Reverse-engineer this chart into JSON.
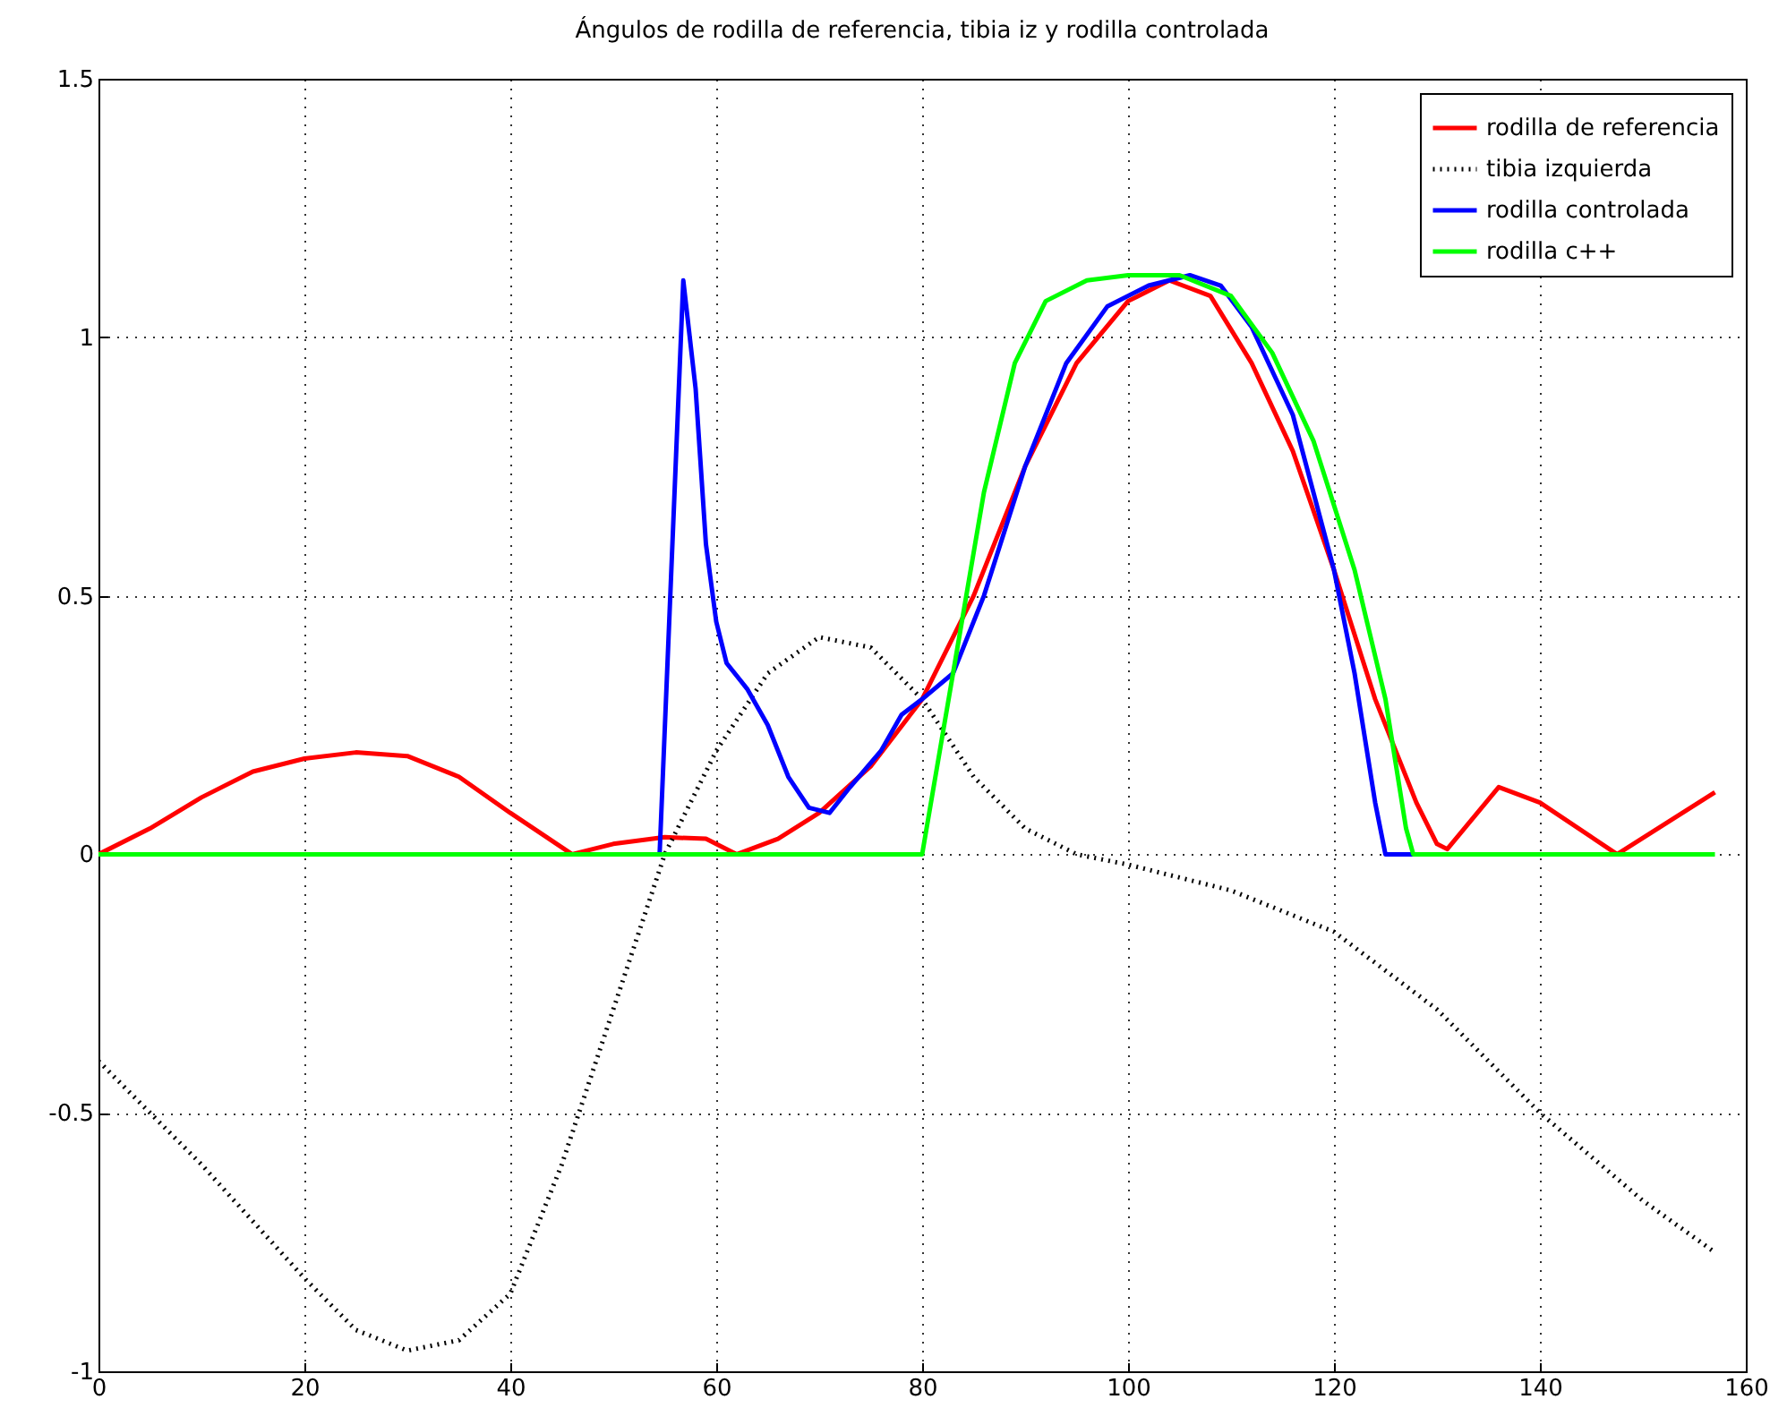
{
  "chart_data": {
    "type": "line",
    "title": "Ángulos de rodilla de referencia, tibia iz y rodilla controlada",
    "xlim": [
      0,
      160
    ],
    "xticks": [
      0,
      20,
      40,
      60,
      80,
      100,
      120,
      140,
      160
    ],
    "ylim": [
      -1,
      1.5
    ],
    "yticks": [
      -1,
      -0.5,
      0,
      0.5,
      1,
      1.5
    ],
    "grid": true,
    "legend": "top right",
    "series": [
      {
        "name": "rodilla de referencia",
        "color": "#ff0000",
        "line_style": "solid",
        "x": [
          0,
          5,
          10,
          15,
          20,
          25,
          30,
          35,
          40,
          46,
          50,
          55,
          59,
          62,
          66,
          70,
          75,
          80,
          85,
          90,
          95,
          100,
          104,
          108,
          112,
          116,
          120,
          124,
          128,
          130,
          131,
          136,
          140,
          147.5,
          157
        ],
        "values": [
          0,
          0.05,
          0.11,
          0.16,
          0.185,
          0.197,
          0.19,
          0.15,
          0.08,
          0,
          0.02,
          0.033,
          0.03,
          0,
          0.03,
          0.08,
          0.17,
          0.3,
          0.5,
          0.75,
          0.95,
          1.07,
          1.11,
          1.08,
          0.95,
          0.78,
          0.55,
          0.3,
          0.1,
          0.02,
          0.01,
          0.13,
          0.1,
          0,
          0.12
        ]
      },
      {
        "name": "tibia izquierda",
        "color": "#000000",
        "line_style": "dotted",
        "x": [
          0,
          10,
          20,
          25,
          30,
          35,
          40,
          45,
          50,
          55,
          60,
          65,
          70,
          75,
          80,
          85,
          90,
          95,
          100,
          110,
          120,
          130,
          140,
          150,
          157
        ],
        "values": [
          -0.4,
          -0.6,
          -0.82,
          -0.92,
          -0.96,
          -0.94,
          -0.85,
          -0.6,
          -0.3,
          0,
          0.2,
          0.35,
          0.42,
          0.4,
          0.3,
          0.15,
          0.05,
          0,
          -0.02,
          -0.07,
          -0.15,
          -0.3,
          -0.5,
          -0.67,
          -0.77
        ]
      },
      {
        "name": "rodilla controlada",
        "color": "#0000ff",
        "line_style": "solid",
        "x": [
          0,
          54.5,
          56.8,
          58,
          59,
          60,
          61,
          63,
          65,
          67,
          69,
          71,
          73,
          76,
          78,
          80,
          83,
          86,
          90,
          94,
          98,
          102,
          106,
          109,
          112,
          116,
          120,
          122,
          124,
          125,
          128
        ],
        "values": [
          0,
          0,
          1.11,
          0.9,
          0.6,
          0.45,
          0.37,
          0.32,
          0.25,
          0.15,
          0.09,
          0.08,
          0.13,
          0.2,
          0.27,
          0.3,
          0.35,
          0.5,
          0.75,
          0.95,
          1.06,
          1.1,
          1.12,
          1.1,
          1.02,
          0.85,
          0.55,
          0.35,
          0.1,
          0,
          0
        ]
      },
      {
        "name": "rodilla c++",
        "color": "#00ff00",
        "line_style": "solid",
        "x": [
          0,
          80,
          83,
          86,
          89,
          92,
          96,
          100,
          105,
          110,
          114,
          118,
          122,
          125,
          127,
          127.7,
          157
        ],
        "values": [
          0,
          0,
          0.35,
          0.7,
          0.95,
          1.07,
          1.11,
          1.12,
          1.12,
          1.08,
          0.97,
          0.8,
          0.55,
          0.3,
          0.05,
          0,
          0
        ]
      }
    ]
  }
}
